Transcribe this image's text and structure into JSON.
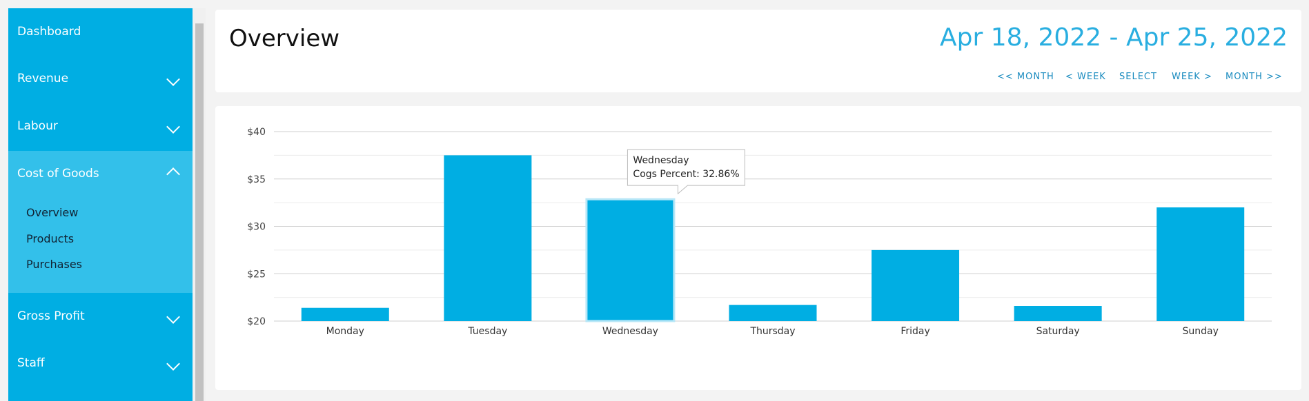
{
  "sidebar": {
    "items": [
      "Dashboard",
      "Revenue",
      "Labour",
      "Cost of Goods",
      "Gross Profit",
      "Staff"
    ],
    "subitems": [
      "Overview",
      "Products",
      "Purchases"
    ]
  },
  "header": {
    "title": "Overview",
    "date_range": "Apr 18, 2022 - Apr 25, 2022",
    "buttons": [
      "<< MONTH",
      "< WEEK",
      "SELECT",
      "WEEK >",
      "MONTH >>"
    ]
  },
  "chart_data": {
    "type": "bar",
    "categories": [
      "Monday",
      "Tuesday",
      "Wednesday",
      "Thursday",
      "Friday",
      "Saturday",
      "Sunday"
    ],
    "values": [
      21.4,
      37.5,
      32.86,
      21.7,
      27.5,
      21.6,
      32.0
    ],
    "color": "#00aee3",
    "ylim": [
      20,
      40
    ],
    "yticks": [
      {
        "value": 20,
        "label": "$20"
      },
      {
        "value": 25,
        "label": "$25"
      },
      {
        "value": 30,
        "label": "$30"
      },
      {
        "value": 35,
        "label": "$35"
      },
      {
        "value": 40,
        "label": "$40"
      }
    ],
    "minor_yticks": [
      22.5,
      27.5,
      32.5,
      37.5
    ],
    "grid": true,
    "tooltip": {
      "title": "Wednesday",
      "text": "Cogs Percent: 32.86%"
    }
  }
}
